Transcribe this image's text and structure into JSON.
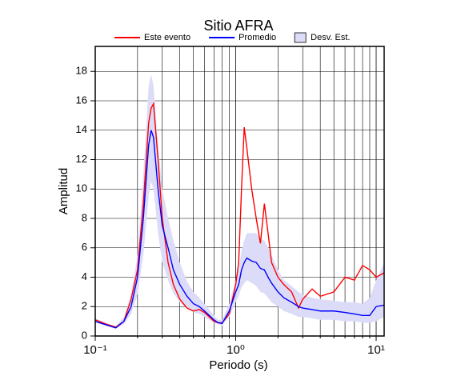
{
  "chart_data": {
    "type": "line",
    "title": "Sitio AFRA",
    "x_label": "Periodo (s)",
    "y_label": "Amplitud",
    "x_scale": "log",
    "grid": true,
    "xlim": [
      0.1,
      11.4
    ],
    "ylim": [
      0,
      19.7
    ],
    "xticks": [
      {
        "value": 0.1,
        "label": "10⁻¹"
      },
      {
        "value": 1,
        "label": "10⁰"
      },
      {
        "value": 10,
        "label": "10¹"
      }
    ],
    "xminorticks": [
      0.2,
      0.3,
      0.4,
      0.5,
      0.6,
      0.7,
      0.8,
      0.9,
      2,
      3,
      4,
      5,
      6,
      7,
      8,
      9
    ],
    "yticks": [
      0,
      2,
      4,
      6,
      8,
      10,
      12,
      14,
      16,
      18
    ],
    "x": [
      0.1,
      0.12,
      0.14,
      0.16,
      0.18,
      0.2,
      0.22,
      0.24,
      0.25,
      0.26,
      0.28,
      0.3,
      0.33,
      0.36,
      0.4,
      0.45,
      0.5,
      0.55,
      0.6,
      0.7,
      0.75,
      0.8,
      0.9,
      1.0,
      1.05,
      1.1,
      1.15,
      1.2,
      1.3,
      1.4,
      1.5,
      1.6,
      1.7,
      1.8,
      2.0,
      2.2,
      2.5,
      2.8,
      3.0,
      3.5,
      4,
      5,
      6,
      7,
      8,
      9,
      10,
      11.4
    ],
    "series": [
      {
        "name": "Este evento",
        "color": "#ff0000",
        "values": [
          1.1,
          0.8,
          0.6,
          1.0,
          2.5,
          4.5,
          9,
          14.5,
          15.5,
          15.8,
          12,
          8,
          5,
          3.5,
          2.5,
          1.9,
          1.7,
          1.8,
          1.6,
          1.0,
          0.9,
          0.9,
          1.5,
          3.5,
          5,
          10,
          14.2,
          12.8,
          10,
          8,
          6.3,
          9,
          7,
          5,
          4,
          3.5,
          3.0,
          1.9,
          2.5,
          3.2,
          2.7,
          3.0,
          4.0,
          3.8,
          4.8,
          4.5,
          4.0,
          4.3
        ]
      },
      {
        "name": "Promedio",
        "color": "#0000ff",
        "values": [
          1.0,
          0.75,
          0.55,
          1.0,
          2.0,
          4,
          8,
          13,
          14,
          13.5,
          10,
          7.5,
          6,
          4.5,
          3.5,
          2.7,
          2.2,
          2.0,
          1.7,
          1.1,
          0.9,
          0.85,
          1.7,
          3.0,
          3.5,
          4.5,
          5,
          5.3,
          5.1,
          5,
          4.6,
          4.5,
          4.0,
          3.6,
          3.0,
          2.6,
          2.3,
          2.0,
          1.9,
          1.8,
          1.7,
          1.7,
          1.6,
          1.5,
          1.4,
          1.4,
          2.0,
          2.1
        ]
      },
      {
        "name": "Desv. Est.",
        "color": "#dcdcf8",
        "lower": [
          0.9,
          0.7,
          0.5,
          0.8,
          1.5,
          2.8,
          5.5,
          9.5,
          10.5,
          10,
          7,
          5,
          3.8,
          2.9,
          2.3,
          1.9,
          1.6,
          1.5,
          1.3,
          0.9,
          0.8,
          0.7,
          1.3,
          2.3,
          2.7,
          3.3,
          3.6,
          3.8,
          3.6,
          3.4,
          3.0,
          2.9,
          2.6,
          2.3,
          2.0,
          1.7,
          1.5,
          1.3,
          1.3,
          1.2,
          1.1,
          1.1,
          1.0,
          1.0,
          0.9,
          0.9,
          1.0,
          1.3
        ],
        "upper": [
          1.2,
          0.9,
          0.65,
          1.3,
          2.8,
          5.5,
          11,
          17,
          17.8,
          17,
          13,
          10,
          8,
          6.5,
          5,
          3.7,
          3,
          2.6,
          2.2,
          1.4,
          1.1,
          1.1,
          2.2,
          3.8,
          4.5,
          5.8,
          6.5,
          7,
          7,
          7,
          6.6,
          6.5,
          6,
          5.5,
          4.5,
          3.8,
          3.4,
          3.0,
          2.8,
          2.6,
          2.5,
          2.4,
          2.3,
          2.3,
          2.2,
          2.6,
          3.8,
          5.0
        ]
      }
    ]
  }
}
